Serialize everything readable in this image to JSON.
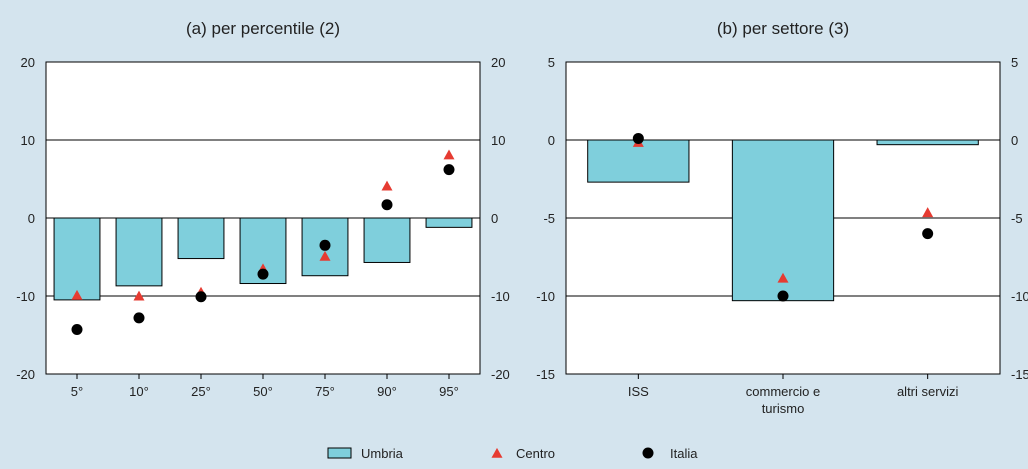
{
  "colors": {
    "background": "#d4e4ee",
    "bar": "#7fcfdc",
    "centro": "#e63b32",
    "italia": "#000000"
  },
  "legend": {
    "items": [
      {
        "label": "Umbria",
        "marker": "bar"
      },
      {
        "label": "Centro",
        "marker": "triangle"
      },
      {
        "label": "Italia",
        "marker": "circle"
      }
    ]
  },
  "chart_data": [
    {
      "type": "bar",
      "title": "(a) per percentile (2)",
      "categories": [
        "5°",
        "10°",
        "25°",
        "50°",
        "75°",
        "90°",
        "95°"
      ],
      "ylim": [
        -20,
        20
      ],
      "yticks": [
        20,
        10,
        0,
        -10,
        -20
      ],
      "grid": true,
      "series": [
        {
          "name": "Umbria",
          "kind": "bar",
          "values": [
            -10.5,
            -8.7,
            -5.2,
            -8.4,
            -7.4,
            -5.7,
            -1.2
          ]
        },
        {
          "name": "Centro",
          "kind": "triangle",
          "values": [
            -10.0,
            -10.1,
            -9.6,
            -6.6,
            -5.0,
            4.0,
            8.0
          ]
        },
        {
          "name": "Italia",
          "kind": "circle",
          "values": [
            -14.3,
            -12.8,
            -10.1,
            -7.2,
            -3.5,
            1.7,
            6.2
          ]
        }
      ]
    },
    {
      "type": "bar",
      "title": "(b) per settore (3)",
      "categories": [
        "ISS",
        "commercio e|turismo",
        "altri servizi"
      ],
      "ylim": [
        -15,
        5
      ],
      "yticks": [
        5,
        0,
        -5,
        -10,
        -15
      ],
      "grid": true,
      "series": [
        {
          "name": "Umbria",
          "kind": "bar",
          "values": [
            -2.7,
            -10.3,
            -0.3
          ]
        },
        {
          "name": "Centro",
          "kind": "triangle",
          "values": [
            -0.2,
            -8.9,
            -4.7
          ]
        },
        {
          "name": "Italia",
          "kind": "circle",
          "values": [
            0.1,
            -10.0,
            -6.0
          ]
        }
      ]
    }
  ]
}
